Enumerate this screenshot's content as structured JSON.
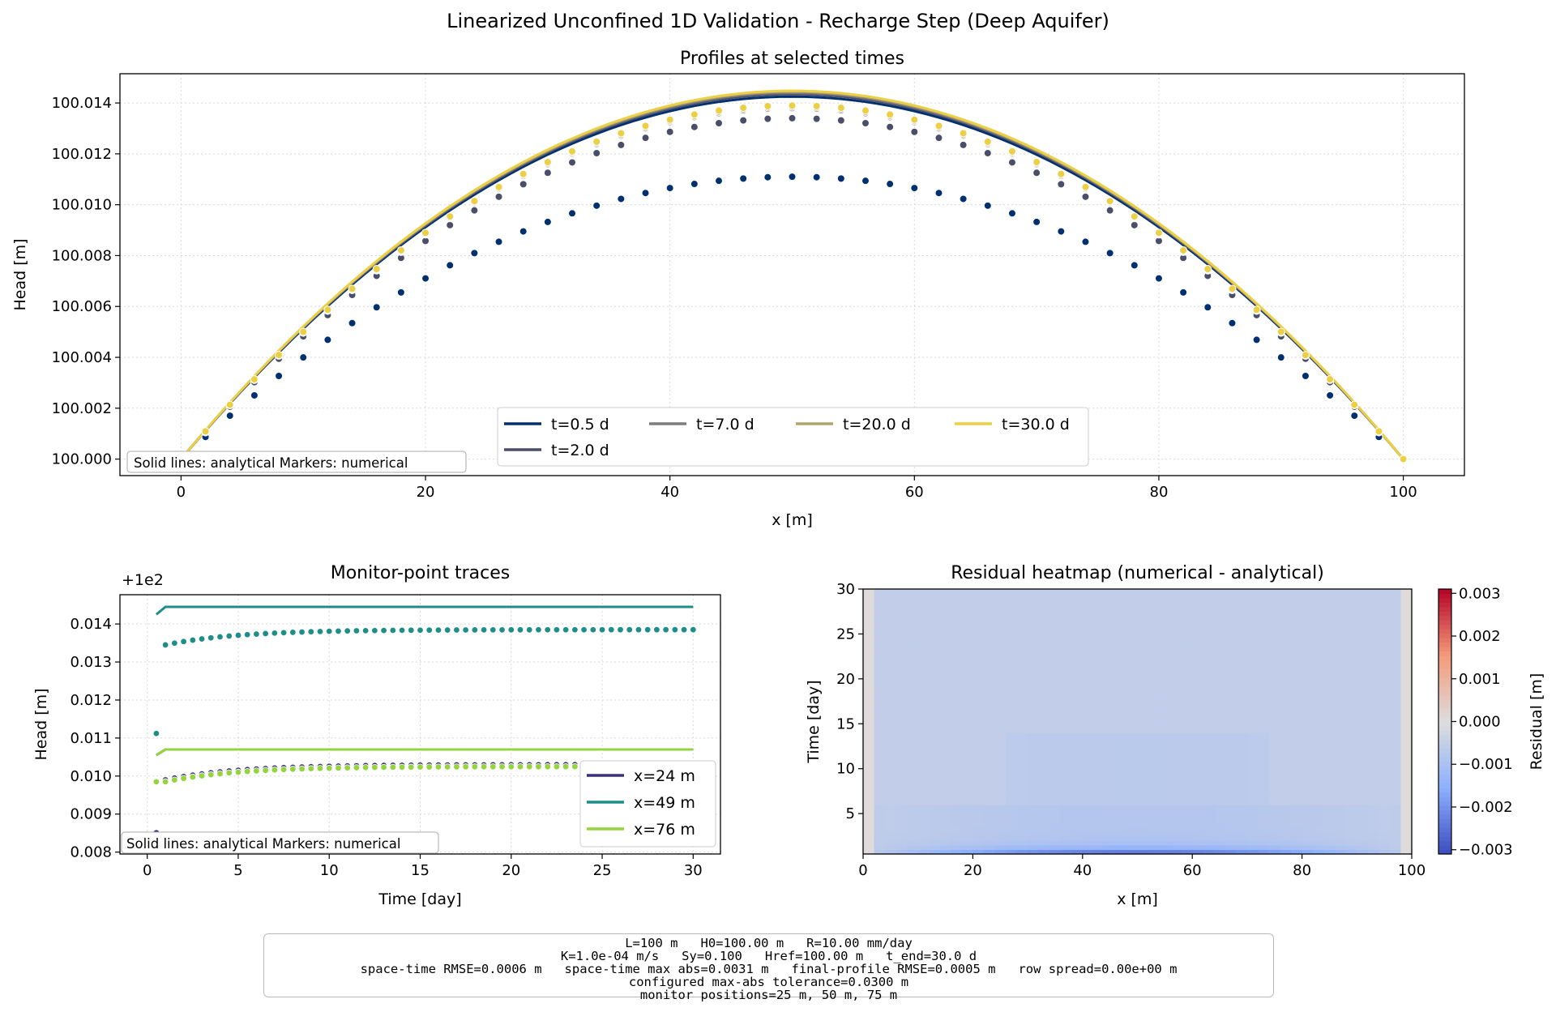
{
  "figure": {
    "suptitle": "Linearized Unconfined 1D Validation - Recharge Step (Deep Aquifer)"
  },
  "colors": {
    "t0_5": "#00306f",
    "t2": "#4a4e69",
    "t7": "#7c7c7c",
    "t20": "#b4a46c",
    "t30": "#ebcf45",
    "x24": "#3b2f80",
    "x49": "#1f8e89",
    "x76": "#93d43f"
  },
  "chart_data": [
    {
      "type": "line",
      "title": "Profiles at selected times",
      "xlabel": "x [m]",
      "ylabel": "Head [m]",
      "xlim": [
        -5,
        105
      ],
      "ylim": [
        99.99935,
        100.01515
      ],
      "xticks": [
        0,
        20,
        40,
        60,
        80,
        100
      ],
      "yticks": [
        100.0,
        100.002,
        100.004,
        100.006,
        100.008,
        100.01,
        100.012,
        100.014
      ],
      "ytick_labels": [
        "100.000",
        "100.002",
        "100.004",
        "100.006",
        "100.008",
        "100.010",
        "100.012",
        "100.014"
      ],
      "grid": true,
      "legend": "lower-center",
      "legend_ncol": 4,
      "note": "Solid lines: analytical   Markers: numerical",
      "x_markers": [
        0,
        2,
        4,
        6,
        8,
        10,
        12,
        14,
        16,
        18,
        20,
        22,
        24,
        26,
        28,
        30,
        32,
        34,
        36,
        38,
        40,
        42,
        44,
        46,
        48,
        50,
        52,
        54,
        56,
        58,
        60,
        62,
        64,
        66,
        68,
        70,
        72,
        74,
        76,
        78,
        80,
        82,
        84,
        86,
        88,
        90,
        92,
        94,
        96,
        98,
        100
      ],
      "series": [
        {
          "name": "t=0.5 d",
          "color_key": "t0_5",
          "analytical_peak": 100.01425,
          "numerical_peak": 100.0111
        },
        {
          "name": "t=2.0 d",
          "color_key": "t2",
          "analytical_peak": 100.01435,
          "numerical_peak": 100.0134
        },
        {
          "name": "t=7.0 d",
          "color_key": "t7",
          "analytical_peak": 100.0144,
          "numerical_peak": 100.0138
        },
        {
          "name": "t=20.0 d",
          "color_key": "t20",
          "analytical_peak": 100.01445,
          "numerical_peak": 100.01385
        },
        {
          "name": "t=30.0 d",
          "color_key": "t30",
          "analytical_peak": 100.01448,
          "numerical_peak": 100.0139
        }
      ]
    },
    {
      "type": "line",
      "title": "Monitor-point traces",
      "xlabel": "Time [day]",
      "ylabel": "Head [m]",
      "offset_label": "+1e2",
      "xlim": [
        -1.5,
        31.5
      ],
      "ylim": [
        0.00795,
        0.01477
      ],
      "xticks": [
        0,
        5,
        10,
        15,
        20,
        25,
        30
      ],
      "yticks": [
        0.008,
        0.009,
        0.01,
        0.011,
        0.012,
        0.013,
        0.014
      ],
      "ytick_labels": [
        "0.008",
        "0.009",
        "0.010",
        "0.011",
        "0.012",
        "0.013",
        "0.014"
      ],
      "grid": true,
      "legend": "lower-right",
      "note": "Solid lines: analytical   Markers: numerical",
      "series": [
        {
          "name": "x=24 m",
          "color_key": "x24",
          "analytical": {
            "t": [
              0.5,
              1.0,
              30.0
            ],
            "h": [
              0.01055,
              0.0107,
              0.0107
            ]
          },
          "numerical_first": 0.00851,
          "numerical_steady": 0.0103
        },
        {
          "name": "x=49 m",
          "color_key": "x49",
          "analytical": {
            "t": [
              0.5,
              1.0,
              30.0
            ],
            "h": [
              0.01425,
              0.01445,
              0.01445
            ]
          },
          "numerical_first": 0.01112,
          "numerical_steady": 0.01385
        },
        {
          "name": "x=76 m",
          "color_key": "x76",
          "analytical": {
            "t": [
              0.5,
              1.0,
              30.0
            ],
            "h": [
              0.01055,
              0.0107,
              0.0107
            ]
          },
          "numerical_first": 0.00985,
          "numerical_steady": 0.01025
        }
      ],
      "marker_times_step": 0.5
    },
    {
      "type": "heatmap",
      "title": "Residual heatmap (numerical - analytical)",
      "xlabel": "x [m]",
      "ylabel": "Time [day]",
      "xlim": [
        0,
        100
      ],
      "ylim": [
        0.5,
        30
      ],
      "xticks": [
        0,
        20,
        40,
        60,
        80,
        100
      ],
      "yticks": [
        5,
        10,
        15,
        20,
        25,
        30
      ],
      "colormap": "coolwarm",
      "vmin": -0.0031,
      "vmax": 0.0031,
      "colorbar_label": "Residual [m]",
      "colorbar_ticks": [
        0.003,
        0.002,
        0.001,
        0.0,
        -0.001,
        -0.002,
        -0.003
      ],
      "colorbar_tick_labels": [
        "0.003",
        "0.002",
        "0.001",
        "0.000",
        "−0.001",
        "−0.002",
        "−0.003"
      ]
    }
  ],
  "infobox": {
    "lines": [
      "L=100 m   H0=100.00 m   R=10.00 mm/day",
      "K=1.0e-04 m/s   Sy=0.100   Href=100.00 m   t_end=30.0 d",
      "space-time RMSE=0.0006 m   space-time max abs=0.0031 m   final-profile RMSE=0.0005 m   row spread=0.00e+00 m",
      "configured max-abs tolerance=0.0300 m",
      "monitor positions=25 m, 50 m, 75 m"
    ]
  }
}
